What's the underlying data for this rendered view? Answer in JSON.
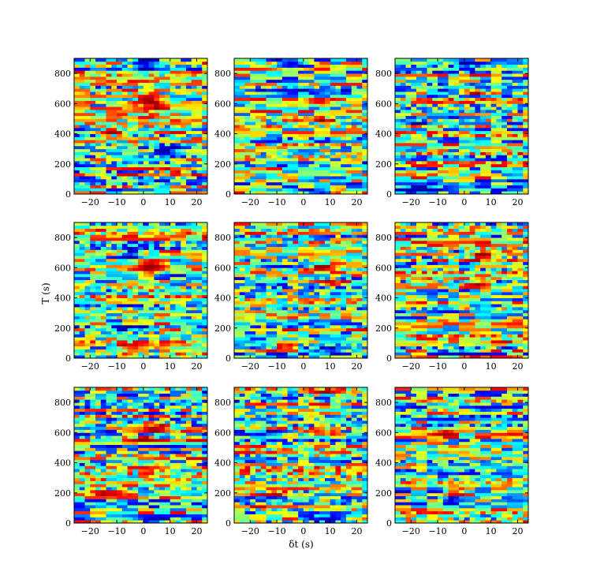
{
  "chart_data": {
    "type": "heatmap",
    "layout": {
      "rows": 3,
      "cols": 3
    },
    "xlabel": "δt (s)",
    "ylabel": "T (s)",
    "xlim": [
      -26,
      24
    ],
    "ylim": [
      0,
      900
    ],
    "x_ticks": [
      -20,
      -10,
      0,
      10,
      20
    ],
    "x_tick_labels": [
      "−20",
      "−10",
      "0",
      "10",
      "20"
    ],
    "y_ticks": [
      0,
      200,
      400,
      600,
      800
    ],
    "y_tick_labels": [
      "0",
      "200",
      "400",
      "600",
      "800"
    ],
    "grid": {
      "x_bins": 25,
      "y_bins": 45
    },
    "colormap": "jet",
    "grid_lines": false,
    "legend": "none",
    "panels": [
      {
        "name": "panel-1-1",
        "features": [
          {
            "x": 2,
            "y": 600,
            "v": 0.95,
            "sx": 3,
            "sy": 40
          },
          {
            "x": 12,
            "y": 160,
            "v": 0.8,
            "sx": 4,
            "sy": 15
          },
          {
            "x": -12,
            "y": 410,
            "v": 0.8,
            "sx": 3,
            "sy": 20
          },
          {
            "x": 0,
            "y": 870,
            "v": -0.8,
            "sx": 3,
            "sy": 30
          },
          {
            "x": 8,
            "y": 300,
            "v": -0.7,
            "sx": 3,
            "sy": 30
          }
        ]
      },
      {
        "name": "panel-1-2",
        "features": [
          {
            "x": 0,
            "y": 680,
            "v": -0.95,
            "sx": 8,
            "sy": 10
          },
          {
            "x": -5,
            "y": 860,
            "v": -0.8,
            "sx": 4,
            "sy": 25
          },
          {
            "x": 5,
            "y": 20,
            "v": -0.9,
            "sx": 5,
            "sy": 12
          },
          {
            "x": 8,
            "y": 490,
            "v": 0.85,
            "sx": 3,
            "sy": 15
          },
          {
            "x": 6,
            "y": 620,
            "v": 0.8,
            "sx": 3,
            "sy": 15
          }
        ]
      },
      {
        "name": "panel-1-3",
        "features": [
          {
            "x": 5,
            "y": 680,
            "v": 0.85,
            "sx": 3,
            "sy": 15
          },
          {
            "x": -15,
            "y": 40,
            "v": -0.8,
            "sx": 6,
            "sy": 10
          },
          {
            "x": 0,
            "y": 870,
            "v": -0.7,
            "sx": 5,
            "sy": 10
          },
          {
            "x": -18,
            "y": 480,
            "v": -0.8,
            "sx": 3,
            "sy": 10
          }
        ]
      },
      {
        "name": "panel-2-1",
        "features": [
          {
            "x": 3,
            "y": 600,
            "v": 0.95,
            "sx": 3,
            "sy": 30
          },
          {
            "x": -5,
            "y": 700,
            "v": -0.85,
            "sx": 3,
            "sy": 25
          },
          {
            "x": -5,
            "y": 200,
            "v": -0.9,
            "sx": 4,
            "sy": 15
          },
          {
            "x": -2,
            "y": 80,
            "v": 0.8,
            "sx": 5,
            "sy": 10
          },
          {
            "x": 0,
            "y": 450,
            "v": 0.6,
            "sx": 3,
            "sy": 15
          }
        ]
      },
      {
        "name": "panel-2-2",
        "features": [
          {
            "x": 7,
            "y": 600,
            "v": 0.9,
            "sx": 4,
            "sy": 15
          },
          {
            "x": 10,
            "y": 500,
            "v": 0.85,
            "sx": 3,
            "sy": 15
          },
          {
            "x": -10,
            "y": 610,
            "v": -0.85,
            "sx": 5,
            "sy": 8
          },
          {
            "x": 10,
            "y": 60,
            "v": -0.9,
            "sx": 4,
            "sy": 15
          },
          {
            "x": -8,
            "y": 80,
            "v": 0.8,
            "sx": 4,
            "sy": 10
          }
        ]
      },
      {
        "name": "panel-2-3",
        "features": [
          {
            "x": 6,
            "y": 680,
            "v": 0.85,
            "sx": 3,
            "sy": 25
          },
          {
            "x": -2,
            "y": 710,
            "v": -0.9,
            "sx": 3,
            "sy": 10
          },
          {
            "x": -5,
            "y": 40,
            "v": -0.9,
            "sx": 5,
            "sy": 8
          },
          {
            "x": 3,
            "y": 490,
            "v": 0.75,
            "sx": 3,
            "sy": 15
          }
        ]
      },
      {
        "name": "panel-3-1",
        "features": [
          {
            "x": 5,
            "y": 640,
            "v": 0.95,
            "sx": 3,
            "sy": 30
          },
          {
            "x": -12,
            "y": 200,
            "v": 0.9,
            "sx": 4,
            "sy": 10
          },
          {
            "x": 3,
            "y": 20,
            "v": -0.9,
            "sx": 4,
            "sy": 15
          },
          {
            "x": -15,
            "y": 610,
            "v": -0.8,
            "sx": 5,
            "sy": 10
          },
          {
            "x": 0,
            "y": 560,
            "v": 0.7,
            "sx": 3,
            "sy": 15
          }
        ]
      },
      {
        "name": "panel-3-2",
        "features": [
          {
            "x": 6,
            "y": 600,
            "v": 0.9,
            "sx": 4,
            "sy": 12
          },
          {
            "x": -15,
            "y": 600,
            "v": -0.9,
            "sx": 6,
            "sy": 8
          },
          {
            "x": 8,
            "y": 30,
            "v": -0.9,
            "sx": 4,
            "sy": 15
          },
          {
            "x": -10,
            "y": 200,
            "v": 0.8,
            "sx": 5,
            "sy": 10
          },
          {
            "x": 10,
            "y": 870,
            "v": 0.75,
            "sx": 4,
            "sy": 12
          }
        ]
      },
      {
        "name": "panel-3-3",
        "features": [
          {
            "x": -4,
            "y": 210,
            "v": 0.95,
            "sx": 2,
            "sy": 20
          },
          {
            "x": -5,
            "y": 150,
            "v": -0.8,
            "sx": 2,
            "sy": 15
          },
          {
            "x": -8,
            "y": 600,
            "v": 0.8,
            "sx": 3,
            "sy": 10
          },
          {
            "x": 5,
            "y": 20,
            "v": -0.6,
            "sx": 5,
            "sy": 10
          }
        ]
      }
    ]
  }
}
